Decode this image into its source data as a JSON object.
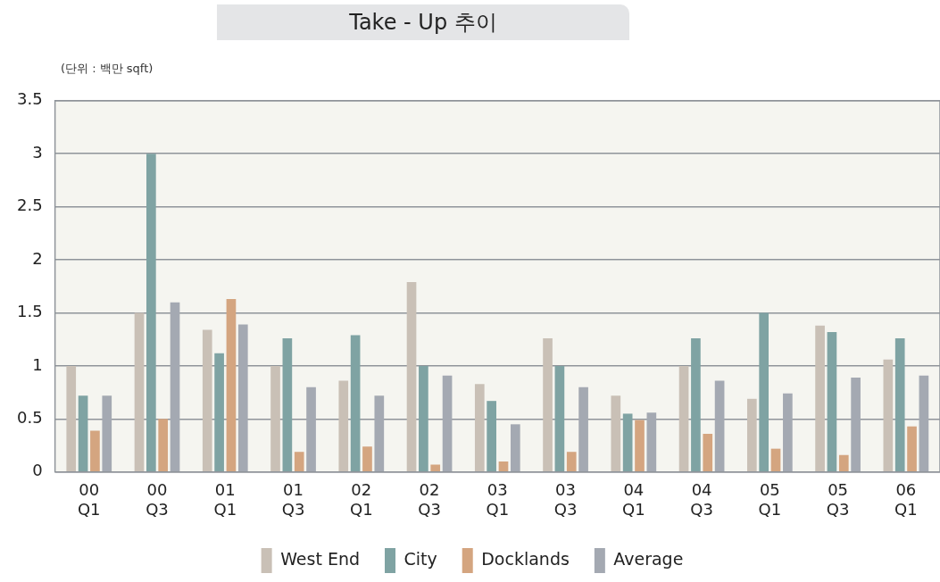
{
  "chart_data": {
    "type": "bar",
    "title": "Take - Up 추이",
    "ylabel": "(단위 : 백만 sqft)",
    "categories": [
      "00\nQ1",
      "00\nQ3",
      "01\nQ1",
      "01\nQ3",
      "02\nQ1",
      "02\nQ3",
      "03\nQ1",
      "03\nQ3",
      "04\nQ1",
      "04\nQ3",
      "05\nQ1",
      "05\nQ3",
      "06\nQ1"
    ],
    "series": [
      {
        "name": "West End",
        "color": "#c9c0b6",
        "values": [
          1.0,
          1.5,
          1.34,
          1.0,
          0.86,
          1.79,
          0.83,
          1.26,
          0.72,
          1.0,
          0.69,
          1.38,
          1.06
        ]
      },
      {
        "name": "City",
        "color": "#7fa3a3",
        "values": [
          0.72,
          3.0,
          1.12,
          1.26,
          1.29,
          1.0,
          0.67,
          1.0,
          0.55,
          1.26,
          1.5,
          1.32,
          1.26
        ]
      },
      {
        "name": "Docklands",
        "color": "#d4a580",
        "values": [
          0.39,
          0.5,
          1.63,
          0.19,
          0.24,
          0.07,
          0.1,
          0.19,
          0.49,
          0.36,
          0.22,
          0.16,
          0.43
        ]
      },
      {
        "name": "Average",
        "color": "#a4a9b2",
        "values": [
          0.72,
          1.6,
          1.39,
          0.8,
          0.72,
          0.91,
          0.45,
          0.8,
          0.56,
          0.86,
          0.74,
          0.89,
          0.91
        ]
      }
    ],
    "ylim": [
      0,
      3.5
    ],
    "yticks": [
      0,
      0.5,
      1,
      1.5,
      2,
      2.5,
      3,
      3.5
    ],
    "grid": "y",
    "legend": "bottom"
  }
}
